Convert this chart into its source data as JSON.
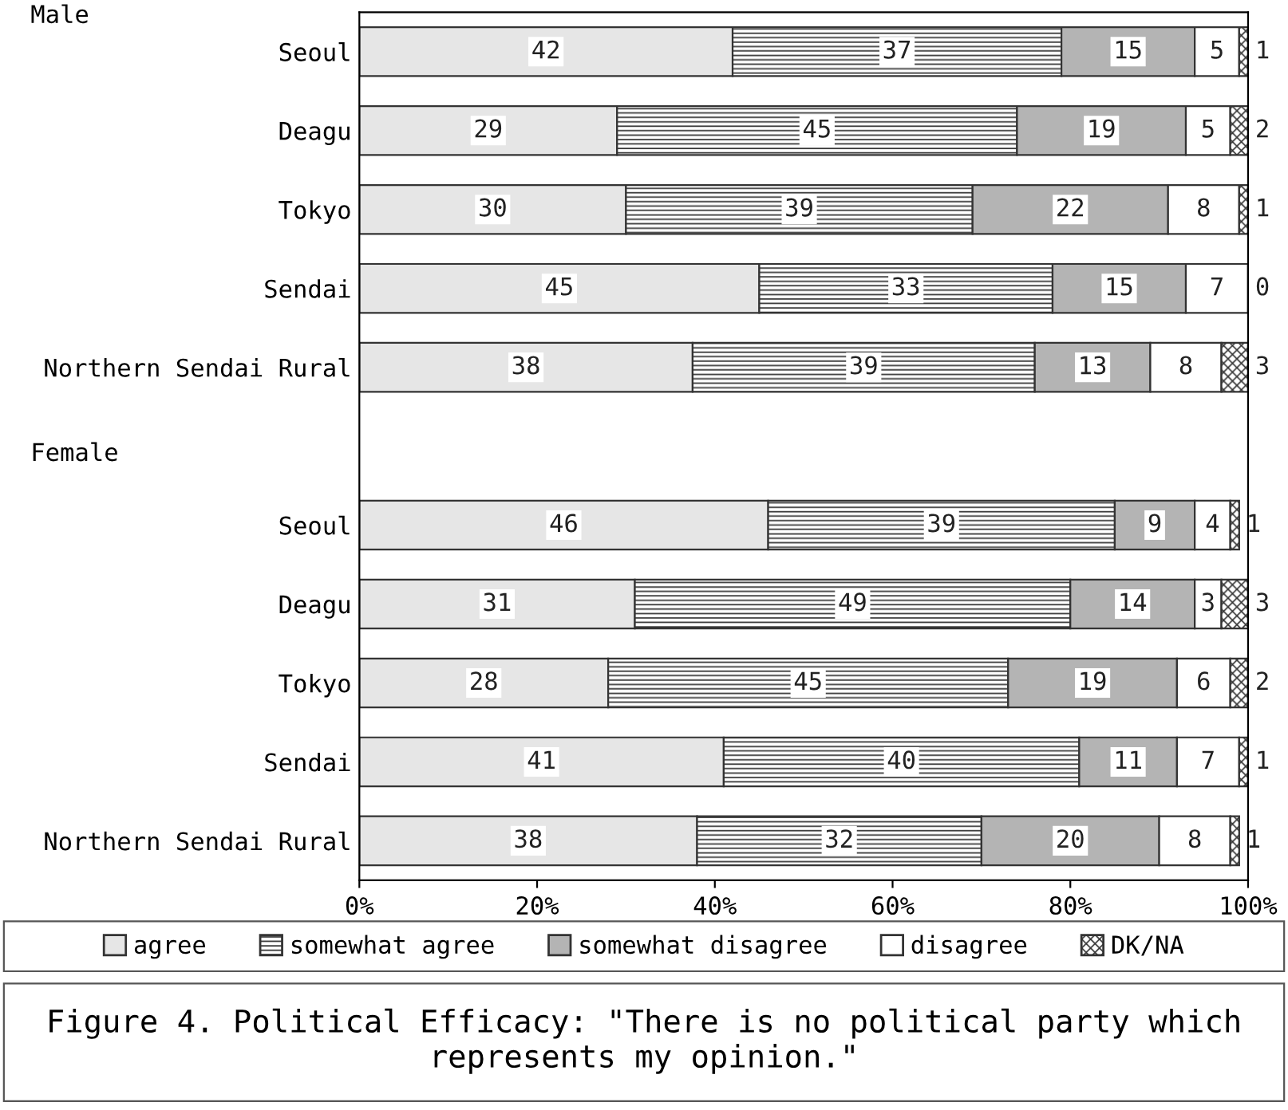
{
  "chart_data": {
    "type": "bar",
    "orientation": "horizontal",
    "stacked": true,
    "title": "Figure 4. Political Efficacy: \"There is no political party which represents my opinion.\"",
    "annotations": [
      "Male",
      "Female"
    ],
    "categories": [
      "Seoul",
      "Deagu",
      "Tokyo",
      "Sendai",
      "Northern Sendai Rural",
      null,
      "Seoul",
      "Deagu",
      "Tokyo",
      "Sendai",
      "Northern Sendai Rural"
    ],
    "series": [
      {
        "name": "agree",
        "color": "#e6e6e6",
        "values": [
          42,
          29,
          30,
          45,
          37.5,
          null,
          46,
          31,
          28,
          41,
          38
        ],
        "value_labels": [
          "42",
          "29",
          "30",
          "45",
          "38",
          null,
          "46",
          "31",
          "28",
          "41",
          "38"
        ]
      },
      {
        "name": "somewhat agree",
        "color": "#333333",
        "values": [
          37,
          45,
          39,
          33,
          38.5,
          null,
          39,
          49,
          45,
          40,
          32
        ],
        "value_labels": [
          "37",
          "45",
          "39",
          "33",
          "39",
          null,
          "39",
          "49",
          "45",
          "40",
          "32"
        ]
      },
      {
        "name": "somewhat disagree",
        "color": "#b4b4b4",
        "values": [
          15,
          19,
          22,
          15,
          13,
          null,
          9,
          14,
          19,
          11,
          20
        ],
        "value_labels": [
          "15",
          "19",
          "22",
          "15",
          "13",
          null,
          "9",
          "14",
          "19",
          "11",
          "20"
        ]
      },
      {
        "name": "disagree",
        "color": "#ffffff",
        "values": [
          5,
          5,
          8,
          7,
          8,
          null,
          4,
          3,
          6,
          7,
          8
        ],
        "value_labels": [
          "5",
          "5",
          "8",
          "7",
          "8",
          null,
          "4",
          "3",
          "6",
          "7",
          "8"
        ]
      },
      {
        "name": "DK/NA",
        "color": "#333333",
        "values": [
          1,
          2,
          1,
          0,
          3,
          null,
          1,
          3,
          2,
          1,
          1
        ],
        "value_labels": [
          "1",
          "2",
          "1",
          "0",
          "3",
          null,
          "1",
          "3",
          "2",
          "1",
          "1"
        ]
      }
    ],
    "xlim": [
      0,
      100
    ],
    "xticks": [
      {
        "value": 0,
        "label": "0%"
      },
      {
        "value": 20,
        "label": "20%"
      },
      {
        "value": 40,
        "label": "40%"
      },
      {
        "value": 60,
        "label": "60%"
      },
      {
        "value": 80,
        "label": "80%"
      },
      {
        "value": 100,
        "label": "100%"
      }
    ],
    "grid": false,
    "legend": "bottom"
  }
}
